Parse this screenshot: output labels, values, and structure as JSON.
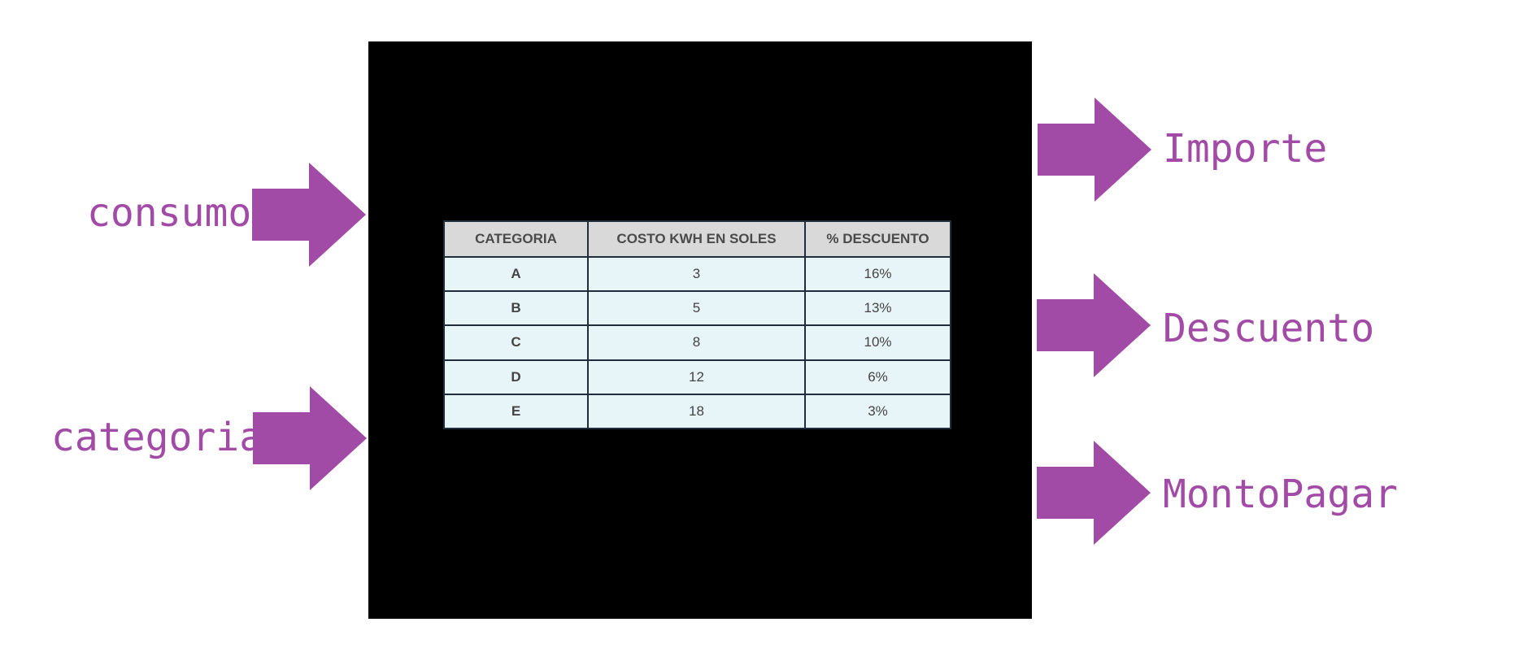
{
  "inputs": {
    "consumo": "consumo",
    "categoria": "categoria"
  },
  "outputs": {
    "importe": "Importe",
    "descuento": "Descuento",
    "monto_pagar": "MontoPagar"
  },
  "table": {
    "headers": [
      "CATEGORIA",
      "COSTO KWH EN SOLES",
      "% DESCUENTO"
    ],
    "rows": [
      {
        "categoria": "A",
        "costo": "3",
        "descuento": "16%"
      },
      {
        "categoria": "B",
        "costo": "5",
        "descuento": "13%"
      },
      {
        "categoria": "C",
        "costo": "8",
        "descuento": "10%"
      },
      {
        "categoria": "D",
        "costo": "12",
        "descuento": "6%"
      },
      {
        "categoria": "E",
        "costo": "18",
        "descuento": "3%"
      }
    ]
  },
  "colors": {
    "accent": "#a24ba6",
    "box": "#000000",
    "header_bg": "#d9d9d9",
    "cell_bg": "#e7f4f8"
  }
}
